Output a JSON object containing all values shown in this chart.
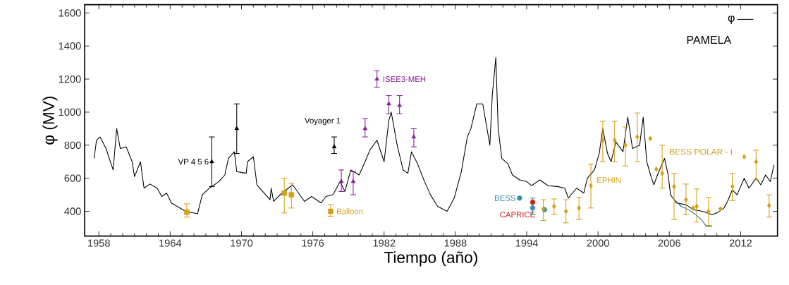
{
  "chart_data": {
    "type": "line",
    "xlabel": "Tiempo (año)",
    "ylabel": "φ (MV)",
    "xlim": [
      1956.8,
      2015.1
    ],
    "ylim": [
      250,
      1650
    ],
    "xticks": [
      1958,
      1964,
      1970,
      1976,
      1982,
      1988,
      1994,
      2000,
      2006,
      2012
    ],
    "yticks": [
      400,
      600,
      800,
      1000,
      1200,
      1400,
      1600
    ],
    "grid": false,
    "legend": "top right",
    "marker": "none",
    "line_style": "solid",
    "annotations": [
      "PAMELA",
      "BESS POLAR - I"
    ],
    "series": [
      {
        "name": "φ",
        "color": "#000000",
        "x": [
          1957.6,
          1957.8,
          1958.1,
          1958.6,
          1959.2,
          1959.5,
          1959.8,
          1960.3,
          1960.8,
          1961.0,
          1961.5,
          1961.8,
          1962.3,
          1962.9,
          1963.3,
          1963.7,
          1964.1,
          1965.3,
          1966.3,
          1966.7,
          1967.3,
          1968.1,
          1968.6,
          1968.9,
          1969.4,
          1969.6,
          1970.4,
          1970.5,
          1971.0,
          1971.3,
          1972.4,
          1972.5,
          1972.7,
          1973.4,
          1974.3,
          1975.3,
          1975.9,
          1976.7,
          1977.1,
          1977.7,
          1978.3,
          1978.7,
          1979.2,
          1979.9,
          1980.4,
          1980.8,
          1981.4,
          1982.0,
          1982.4,
          1982.6,
          1983.1,
          1983.6,
          1984.0,
          1984.3,
          1984.8,
          1985.4,
          1985.9,
          1986.5,
          1987.3,
          1987.9,
          1988.5,
          1989.0,
          1989.3,
          1989.8,
          1990.3,
          1990.9,
          1991.1,
          1991.4,
          1991.6,
          1991.9,
          1992.4,
          1992.8,
          1993.4,
          1994.0,
          1994.4,
          1995.1,
          1995.8,
          1996.6,
          1997.2,
          1997.5,
          1998.2,
          1998.8,
          1999.1,
          1999.7,
          2000.1,
          2000.4,
          2000.8,
          2001.1,
          2001.5,
          2002.1,
          2002.5,
          2002.9,
          2003.5,
          2003.8,
          2004.1,
          2004.5,
          2004.7,
          2005.0,
          2005.6,
          2005.9,
          2006.1,
          2006.6,
          2007.4,
          2008.0,
          2008.8,
          2009.6,
          2010.0,
          2010.6,
          2010.9,
          2011.3,
          2011.7,
          2012.3,
          2012.7,
          2013.3,
          2013.7,
          2014.1,
          2014.5,
          2014.8
        ],
        "values": [
          720,
          830,
          850,
          780,
          650,
          900,
          780,
          790,
          700,
          610,
          700,
          540,
          565,
          540,
          490,
          510,
          450,
          400,
          385,
          500,
          540,
          580,
          620,
          720,
          760,
          640,
          630,
          700,
          730,
          560,
          470,
          540,
          460,
          510,
          560,
          460,
          490,
          450,
          490,
          500,
          580,
          520,
          650,
          620,
          700,
          770,
          830,
          700,
          950,
          1000,
          800,
          650,
          630,
          760,
          690,
          580,
          500,
          430,
          400,
          480,
          640,
          850,
          900,
          1050,
          1050,
          800,
          1100,
          1330,
          900,
          720,
          690,
          620,
          590,
          580,
          555,
          590,
          555,
          550,
          540,
          480,
          540,
          510,
          600,
          650,
          750,
          900,
          750,
          700,
          820,
          760,
          970,
          780,
          800,
          970,
          700,
          600,
          560,
          620,
          720,
          620,
          500,
          450,
          440,
          410,
          400,
          380,
          390,
          420,
          460,
          530,
          500,
          600,
          540,
          600,
          560,
          620,
          580,
          680
        ]
      },
      {
        "color": "#2a6ab0",
        "x": [
          2006.3,
          2007.0,
          2007.6,
          2008.2,
          2008.7,
          2009.1,
          2009.6
        ],
        "values": [
          480,
          430,
          410,
          380,
          350,
          310,
          310
        ]
      },
      {
        "name": "VP 4 5 6",
        "type": "scatter",
        "marker": "triangle",
        "color": "#000000",
        "x": [
          1967.5,
          1969.6
        ],
        "values": [
          700,
          900
        ],
        "errors": [
          [
            550,
            850
          ],
          [
            750,
            1050
          ]
        ]
      },
      {
        "name": "Balloon",
        "type": "scatter",
        "marker": "square",
        "color": "#d4a017",
        "x": [
          1965.4,
          1973.6,
          1974.2,
          1977.5
        ],
        "values": [
          395,
          510,
          500,
          400
        ],
        "errors": [
          [
            365,
            445
          ],
          [
            390,
            600
          ],
          [
            420,
            570
          ],
          [
            370,
            440
          ]
        ]
      },
      {
        "name": "Voyager 1",
        "type": "scatter",
        "marker": "triangle",
        "color": "#000000",
        "x": [
          1977.8
        ],
        "values": [
          790
        ],
        "errors": [
          [
            750,
            850
          ]
        ]
      },
      {
        "name": "ISEE3-MEH",
        "type": "scatter",
        "marker": "triangle",
        "color": "#8b1a9a",
        "x": [
          1978.4,
          1979.4,
          1980.4,
          1981.4,
          1982.4,
          1983.3,
          1984.5
        ],
        "values": [
          580,
          580,
          900,
          1200,
          1050,
          1040,
          850
        ],
        "errors": [
          [
            520,
            650
          ],
          [
            500,
            640
          ],
          [
            850,
            960
          ],
          [
            1150,
            1250
          ],
          [
            990,
            1100
          ],
          [
            990,
            1100
          ],
          [
            790,
            900
          ]
        ]
      },
      {
        "name": "BESS",
        "type": "scatter",
        "marker": "circle",
        "color": "#3a8fb0",
        "x": [
          1993.4,
          1994.5,
          1995.5
        ],
        "values": [
          480,
          420,
          410
        ],
        "errors": [
          null,
          [
            380,
            480
          ],
          null
        ]
      },
      {
        "name": "CAPRICE",
        "type": "scatter",
        "marker": "circle",
        "color": "#cc2020",
        "x": [
          1994.5
        ],
        "values": [
          455
        ]
      },
      {
        "name": "EPHIN",
        "type": "scatter",
        "marker": "diamond",
        "color": "#d4a017",
        "x": [
          1995.4,
          1996.3,
          1997.3,
          1998.4,
          1999.4,
          2000.4,
          2001.4,
          2002.3,
          2003.3,
          2004.4,
          2004.9,
          2005.4,
          2006.4,
          2007.4,
          2008.0,
          2008.3,
          2009.3,
          2010.3,
          2011.3,
          2012.3,
          2013.3,
          2014.4
        ],
        "values": [
          415,
          430,
          400,
          420,
          555,
          830,
          830,
          800,
          850,
          840,
          655,
          630,
          550,
          470,
          420,
          430,
          400,
          415,
          550,
          730,
          700,
          435
        ],
        "errors": [
          [
            345,
            470
          ],
          [
            380,
            475
          ],
          [
            330,
            470
          ],
          [
            350,
            485
          ],
          [
            420,
            685
          ],
          [
            700,
            945
          ],
          [
            700,
            945
          ],
          [
            675,
            910
          ],
          [
            700,
            995
          ],
          null,
          null,
          [
            540,
            800
          ],
          [
            350,
            630
          ],
          [
            380,
            565
          ],
          null,
          [
            335,
            535
          ],
          [
            315,
            485
          ],
          null,
          [
            465,
            630
          ],
          null,
          [
            590,
            770
          ],
          [
            365,
            500
          ]
        ]
      }
    ]
  }
}
